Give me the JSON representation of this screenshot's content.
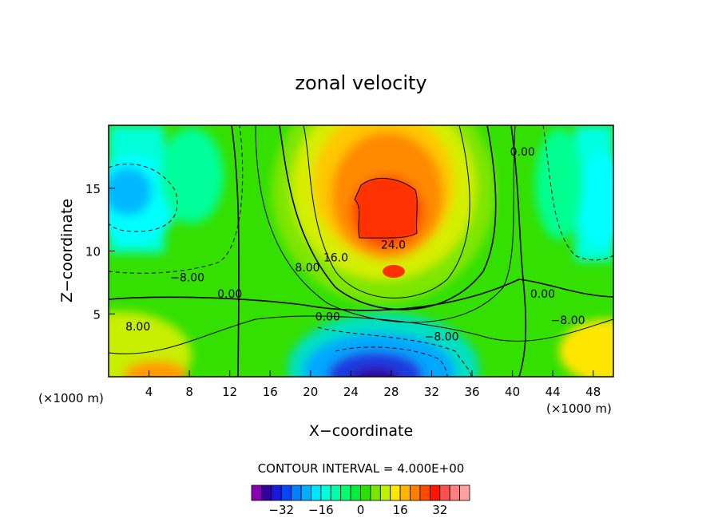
{
  "chart_data": {
    "type": "heatmap",
    "title": "zonal velocity",
    "xlabel": "X−coordinate",
    "ylabel": "Z−coordinate",
    "x_units_left": "(×1000 m)",
    "x_units_right": "(×1000 m)",
    "xlim": [
      0,
      50
    ],
    "ylim": [
      0,
      20
    ],
    "x_ticks": [
      4,
      8,
      12,
      16,
      20,
      24,
      28,
      32,
      36,
      40,
      44,
      48
    ],
    "y_ticks": [
      5,
      10,
      15
    ],
    "contour_interval_text": "CONTOUR INTERVAL = 4.000E+00",
    "contour_interval": 4,
    "contour_labels": [
      {
        "text": "24.0",
        "x": 28.2,
        "y": 10.5
      },
      {
        "text": "16.0",
        "x": 22.5,
        "y": 9.5
      },
      {
        "text": "8.00",
        "x": 19.7,
        "y": 8.7
      },
      {
        "text": "−8.00",
        "x": 7.8,
        "y": 7.9
      },
      {
        "text": "0.00",
        "x": 12.0,
        "y": 6.6
      },
      {
        "text": "0.00",
        "x": 21.7,
        "y": 4.8
      },
      {
        "text": "0.00",
        "x": 43.0,
        "y": 6.6
      },
      {
        "text": "0.00",
        "x": 41.0,
        "y": 17.9
      },
      {
        "text": "8.00",
        "x": 2.9,
        "y": 4.0
      },
      {
        "text": "−8.00",
        "x": 33.0,
        "y": 3.2
      },
      {
        "text": "−8.00",
        "x": 45.5,
        "y": 4.5
      }
    ],
    "colorbar": {
      "tick_labels": [
        "−32",
        "−16",
        "0",
        "16",
        "32"
      ],
      "tick_values": [
        -32,
        -16,
        0,
        16,
        32
      ],
      "colors": [
        "#8b00b5",
        "#3300a0",
        "#1a1adf",
        "#0047ff",
        "#0080ff",
        "#00b0ff",
        "#00e5ff",
        "#00ffd8",
        "#00ffaa",
        "#00ff70",
        "#00ef3a",
        "#2fdf00",
        "#7be600",
        "#c2ee00",
        "#ffe600",
        "#ffb400",
        "#ff8000",
        "#ff4a00",
        "#ff1600",
        "#ff5050",
        "#ff8080",
        "#ffa0a0"
      ]
    }
  }
}
